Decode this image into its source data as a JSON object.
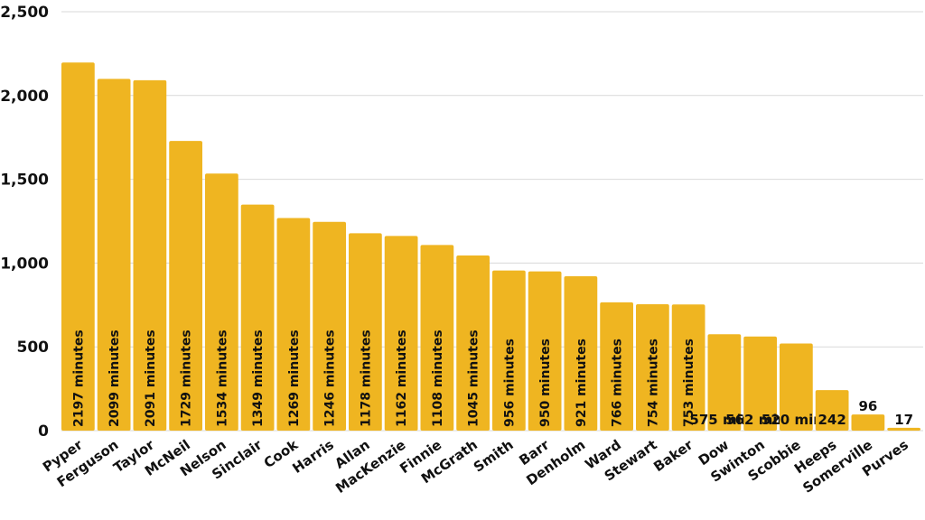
{
  "chart_data": {
    "type": "bar",
    "categories": [
      "Pyper",
      "Ferguson",
      "Taylor",
      "McNeil",
      "Nelson",
      "Sinclair",
      "Cook",
      "Harris",
      "Allan",
      "MacKenzie",
      "Finnie",
      "McGrath",
      "Smith",
      "Barr",
      "Denholm",
      "Ward",
      "Stewart",
      "Baker",
      "Dow",
      "Swinton",
      "Scobbie",
      "Heeps",
      "Somerville",
      "Purves"
    ],
    "values": [
      2197,
      2099,
      2091,
      1729,
      1534,
      1349,
      1269,
      1246,
      1178,
      1162,
      1108,
      1045,
      956,
      950,
      921,
      766,
      754,
      753,
      575,
      562,
      520,
      242,
      96,
      17
    ],
    "data_labels": [
      "2197 minutes",
      "2099 minutes",
      "2091 minutes",
      "1729 minutes",
      "1534 minutes",
      "1349 minutes",
      "1269 minutes",
      "1246 minutes",
      "1178 minutes",
      "1162 minutes",
      "1108 minutes",
      "1045 minutes",
      "956 minutes",
      "950 minutes",
      "921 minutes",
      "766 minutes",
      "754 minutes",
      "753 minutes",
      "575 mins",
      "562 mins",
      "520 mins",
      "242",
      "96",
      "17"
    ],
    "yticks": [
      0,
      500,
      1000,
      1500,
      2000,
      2500
    ],
    "ytick_labels": [
      "0",
      "500",
      "1,000",
      "1,500",
      "2,000",
      "2,500"
    ],
    "ylim": [
      0,
      2500
    ],
    "grid": true,
    "bar_color": "#efb521"
  }
}
